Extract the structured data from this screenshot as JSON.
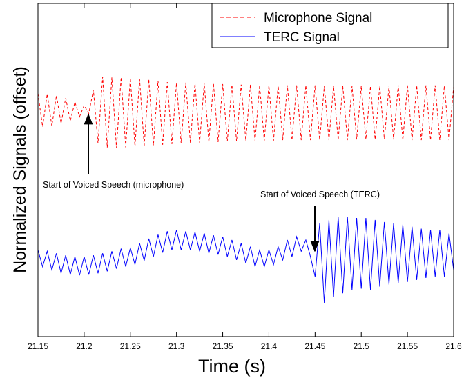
{
  "chart_data": {
    "type": "line",
    "xlabel": "Time (s)",
    "ylabel": "Normalized Signals (offset)",
    "xlim": [
      21.15,
      21.6
    ],
    "xticks": [
      21.15,
      21.2,
      21.25,
      21.3,
      21.35,
      21.4,
      21.45,
      21.5,
      21.55,
      21.6
    ],
    "ylim": [
      -2.5,
      2.5
    ],
    "legend": "upper right",
    "annotations": [
      {
        "text": "Start of Voiced Speech (microphone)",
        "x": 21.21,
        "y": 0.4
      },
      {
        "text": "Start of Voiced Speech (TERC)",
        "x": 21.45,
        "y": -0.8
      }
    ],
    "x": [
      21.15,
      21.155,
      21.16,
      21.165,
      21.17,
      21.175,
      21.18,
      21.185,
      21.19,
      21.195,
      21.2,
      21.205,
      21.21,
      21.215,
      21.22,
      21.225,
      21.23,
      21.235,
      21.24,
      21.245,
      21.25,
      21.255,
      21.26,
      21.265,
      21.27,
      21.275,
      21.28,
      21.285,
      21.29,
      21.295,
      21.3,
      21.305,
      21.31,
      21.315,
      21.32,
      21.325,
      21.33,
      21.335,
      21.34,
      21.345,
      21.35,
      21.355,
      21.36,
      21.365,
      21.37,
      21.375,
      21.38,
      21.385,
      21.39,
      21.395,
      21.4,
      21.405,
      21.41,
      21.415,
      21.42,
      21.425,
      21.43,
      21.435,
      21.44,
      21.445,
      21.45,
      21.455,
      21.46,
      21.465,
      21.47,
      21.475,
      21.48,
      21.485,
      21.49,
      21.495,
      21.5,
      21.505,
      21.51,
      21.515,
      21.52,
      21.525,
      21.53,
      21.535,
      21.54,
      21.545,
      21.55,
      21.555,
      21.56,
      21.565,
      21.57,
      21.575,
      21.58,
      21.585,
      21.59,
      21.595,
      21.6
    ],
    "series": [
      {
        "name": "Microphone Signal",
        "color": "#ff0000",
        "dash": true,
        "values": [
          1.15,
          0.65,
          1.14,
          0.66,
          1.12,
          0.7,
          1.08,
          0.74,
          1.02,
          0.8,
          0.97,
          0.85,
          1.2,
          0.4,
          1.4,
          0.34,
          1.39,
          0.33,
          1.39,
          0.34,
          1.38,
          0.35,
          1.37,
          0.36,
          1.36,
          0.37,
          1.34,
          0.38,
          1.32,
          0.39,
          1.31,
          0.4,
          1.31,
          0.41,
          1.3,
          0.41,
          1.3,
          0.42,
          1.3,
          0.42,
          1.29,
          0.43,
          1.28,
          0.43,
          1.28,
          0.44,
          1.28,
          0.44,
          1.27,
          0.44,
          1.27,
          0.44,
          1.27,
          0.45,
          1.27,
          0.45,
          1.27,
          0.45,
          1.27,
          0.45,
          1.27,
          0.45,
          1.26,
          0.45,
          1.26,
          0.45,
          1.26,
          0.45,
          1.26,
          0.46,
          1.26,
          0.46,
          1.26,
          0.46,
          1.26,
          0.46,
          1.26,
          0.46,
          1.27,
          0.45,
          1.27,
          0.45,
          1.27,
          0.45,
          1.27,
          0.45,
          1.27,
          0.45,
          1.27,
          0.45,
          1.25
        ]
      },
      {
        "name": "TERC Signal",
        "color": "#0000ff",
        "dash": false,
        "values": [
          -1.2,
          -1.45,
          -1.22,
          -1.5,
          -1.25,
          -1.55,
          -1.28,
          -1.57,
          -1.3,
          -1.58,
          -1.3,
          -1.57,
          -1.28,
          -1.55,
          -1.25,
          -1.52,
          -1.22,
          -1.48,
          -1.18,
          -1.45,
          -1.17,
          -1.42,
          -1.1,
          -1.36,
          -1.03,
          -1.3,
          -0.97,
          -1.24,
          -0.92,
          -1.2,
          -0.9,
          -1.2,
          -0.92,
          -1.2,
          -0.93,
          -1.22,
          -0.95,
          -1.25,
          -0.98,
          -1.27,
          -1.0,
          -1.3,
          -1.05,
          -1.35,
          -1.1,
          -1.4,
          -1.15,
          -1.45,
          -1.2,
          -1.45,
          -1.2,
          -1.42,
          -1.15,
          -1.35,
          -1.05,
          -1.3,
          -1.0,
          -1.22,
          -1.05,
          -1.3,
          -1.6,
          -0.8,
          -2.0,
          -0.75,
          -1.9,
          -0.7,
          -1.85,
          -0.7,
          -1.8,
          -0.72,
          -1.78,
          -0.72,
          -1.8,
          -0.75,
          -1.75,
          -0.78,
          -1.72,
          -0.8,
          -1.7,
          -0.82,
          -1.68,
          -0.85,
          -1.65,
          -0.88,
          -1.62,
          -0.9,
          -1.6,
          -0.9,
          -1.6,
          -0.95,
          -1.5
        ]
      }
    ]
  }
}
